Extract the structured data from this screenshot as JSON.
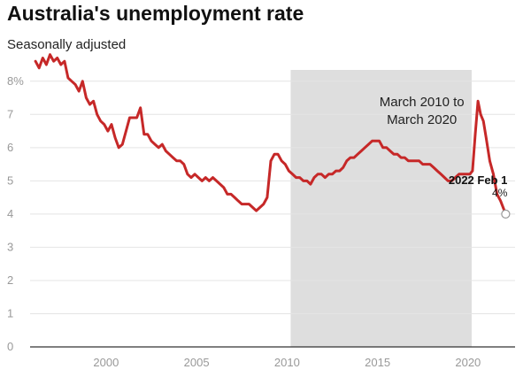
{
  "header": {
    "title": "Australia's unemployment rate",
    "subtitle": "Seasonally adjusted"
  },
  "chart_data": {
    "type": "line",
    "title": "Australia's unemployment rate",
    "subtitle": "Seasonally adjusted",
    "xlabel": "",
    "ylabel": "",
    "xlim": [
      1995.8,
      2022.6
    ],
    "ylim": [
      0,
      8.5
    ],
    "x_ticks": [
      2000,
      2005,
      2010,
      2015,
      2020
    ],
    "x_tick_labels": [
      "2000",
      "2005",
      "2010",
      "2015",
      "2020"
    ],
    "y_ticks": [
      0,
      1,
      2,
      3,
      4,
      5,
      6,
      7,
      8
    ],
    "y_tick_labels": [
      "0",
      "1",
      "2",
      "3",
      "4",
      "5",
      "6",
      "7",
      "8%"
    ],
    "grid": true,
    "line_color": "#c62828",
    "shade_color": "#dedede",
    "shaded_region": {
      "x_start": 2010.2,
      "x_end": 2020.2,
      "label_lines": [
        "March 2010 to",
        "March 2020"
      ]
    },
    "callout": {
      "label": "2022 Feb 1",
      "value_label": "4%",
      "x": 2022.08,
      "y": 4.0
    },
    "series": [
      {
        "x": [
          1996.1,
          1996.3,
          1996.5,
          1996.7,
          1996.9,
          1997.1,
          1997.3,
          1997.5,
          1997.7,
          1997.9,
          1998.1,
          1998.3,
          1998.5,
          1998.7,
          1998.9,
          1999.1,
          1999.3,
          1999.5,
          1999.7,
          1999.9,
          2000.1,
          2000.3,
          2000.5,
          2000.7,
          2000.9,
          2001.1,
          2001.3,
          2001.5,
          2001.7,
          2001.9,
          2002.1,
          2002.3,
          2002.5,
          2002.7,
          2002.9,
          2003.1,
          2003.3,
          2003.5,
          2003.7,
          2003.9,
          2004.1,
          2004.3,
          2004.5,
          2004.7,
          2004.9,
          2005.1,
          2005.3,
          2005.5,
          2005.7,
          2005.9,
          2006.1,
          2006.3,
          2006.5,
          2006.7,
          2006.9,
          2007.1,
          2007.3,
          2007.5,
          2007.7,
          2007.9,
          2008.1,
          2008.3,
          2008.5,
          2008.7,
          2008.9,
          2009.1,
          2009.3,
          2009.5,
          2009.7,
          2009.9,
          2010.1,
          2010.3,
          2010.5,
          2010.7,
          2010.9,
          2011.1,
          2011.3,
          2011.5,
          2011.7,
          2011.9,
          2012.1,
          2012.3,
          2012.5,
          2012.7,
          2012.9,
          2013.1,
          2013.3,
          2013.5,
          2013.7,
          2013.9,
          2014.1,
          2014.3,
          2014.5,
          2014.7,
          2014.9,
          2015.1,
          2015.3,
          2015.5,
          2015.7,
          2015.9,
          2016.1,
          2016.3,
          2016.5,
          2016.7,
          2016.9,
          2017.1,
          2017.3,
          2017.5,
          2017.7,
          2017.9,
          2018.1,
          2018.3,
          2018.5,
          2018.7,
          2018.9,
          2019.1,
          2019.3,
          2019.5,
          2019.7,
          2019.9,
          2020.1,
          2020.25,
          2020.4,
          2020.55,
          2020.7,
          2020.85,
          2021.0,
          2021.2,
          2021.4,
          2021.6,
          2021.8,
          2022.08
        ],
        "y": [
          8.6,
          8.4,
          8.7,
          8.5,
          8.8,
          8.6,
          8.7,
          8.5,
          8.6,
          8.1,
          8.0,
          7.9,
          7.7,
          8.0,
          7.5,
          7.3,
          7.4,
          7.0,
          6.8,
          6.7,
          6.5,
          6.7,
          6.3,
          6.0,
          6.1,
          6.5,
          6.9,
          6.9,
          6.9,
          7.2,
          6.4,
          6.4,
          6.2,
          6.1,
          6.0,
          6.1,
          5.9,
          5.8,
          5.7,
          5.6,
          5.6,
          5.5,
          5.2,
          5.1,
          5.2,
          5.1,
          5.0,
          5.1,
          5.0,
          5.1,
          5.0,
          4.9,
          4.8,
          4.6,
          4.6,
          4.5,
          4.4,
          4.3,
          4.3,
          4.3,
          4.2,
          4.1,
          4.2,
          4.3,
          4.5,
          5.6,
          5.8,
          5.8,
          5.6,
          5.5,
          5.3,
          5.2,
          5.1,
          5.1,
          5.0,
          5.0,
          4.9,
          5.1,
          5.2,
          5.2,
          5.1,
          5.2,
          5.2,
          5.3,
          5.3,
          5.4,
          5.6,
          5.7,
          5.7,
          5.8,
          5.9,
          6.0,
          6.1,
          6.2,
          6.2,
          6.2,
          6.0,
          6.0,
          5.9,
          5.8,
          5.8,
          5.7,
          5.7,
          5.6,
          5.6,
          5.6,
          5.6,
          5.5,
          5.5,
          5.5,
          5.4,
          5.3,
          5.2,
          5.1,
          5.0,
          5.0,
          5.1,
          5.2,
          5.2,
          5.2,
          5.2,
          5.3,
          6.4,
          7.4,
          7.0,
          6.8,
          6.3,
          5.6,
          5.2,
          4.6,
          4.4,
          4.0
        ]
      }
    ]
  }
}
